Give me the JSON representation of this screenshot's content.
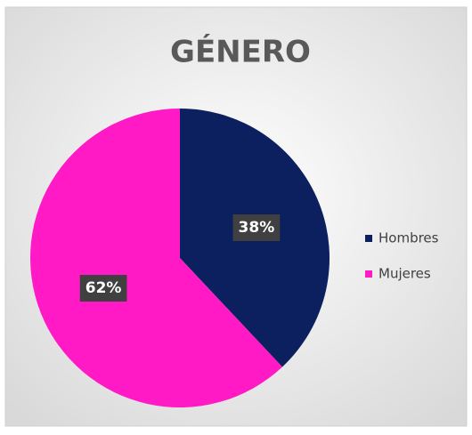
{
  "chart_data": {
    "type": "pie",
    "title": "GÉNERO",
    "categories": [
      "Hombres",
      "Mujeres"
    ],
    "values": [
      38,
      62
    ],
    "value_labels": [
      "38%",
      "62%"
    ],
    "colors": [
      "#0c1f5e",
      "#ff1ac6"
    ],
    "legend": "right"
  }
}
